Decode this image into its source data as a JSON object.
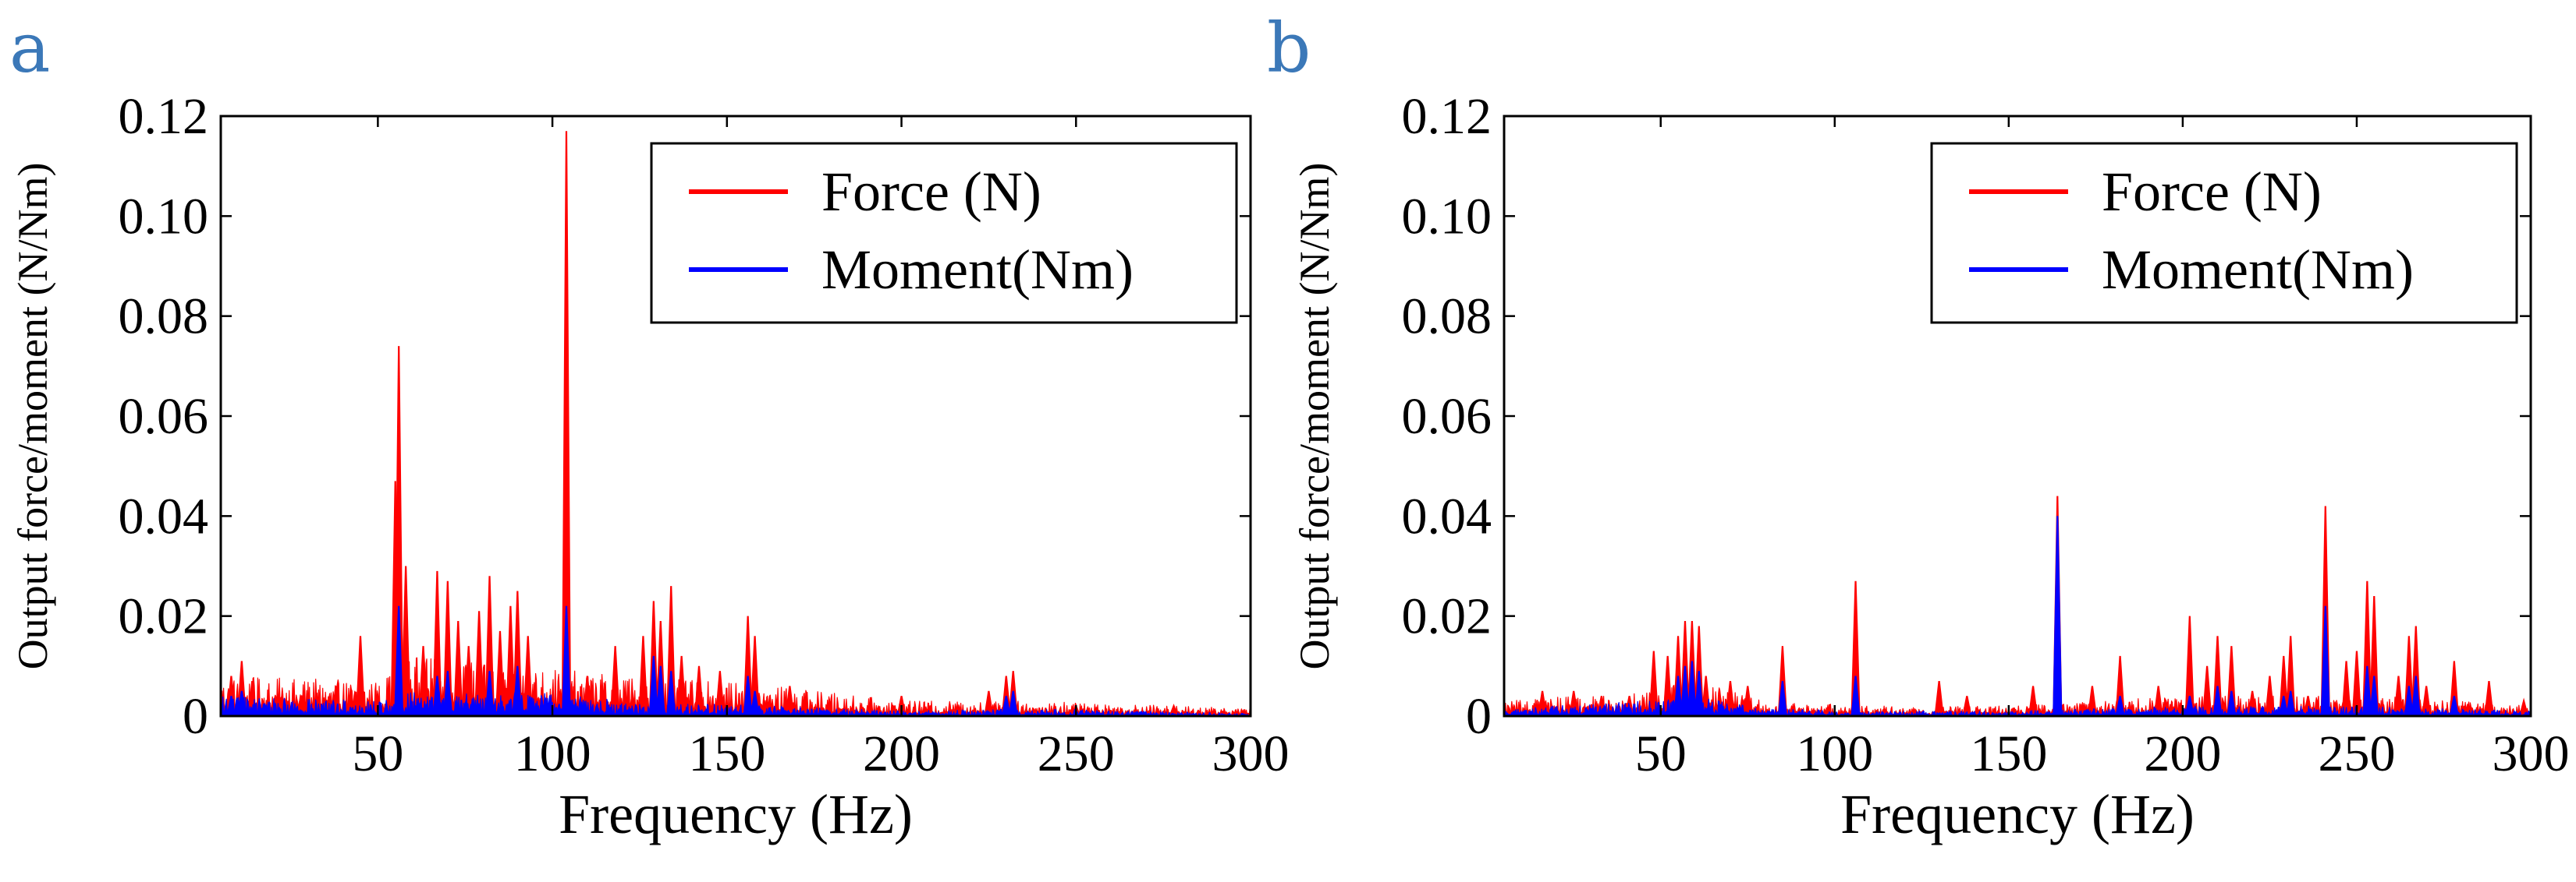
{
  "chart_data": [
    {
      "panel": "a",
      "type": "line",
      "xlabel": "Frequency (Hz)",
      "ylabel": "Output force/moment (N/Nm)",
      "xlim": [
        5,
        300
      ],
      "ylim": [
        0,
        0.12
      ],
      "xticks": [
        50,
        100,
        150,
        200,
        250,
        300
      ],
      "yticks": [
        0,
        0.02,
        0.04,
        0.06,
        0.08,
        0.1,
        0.12
      ],
      "ytick_labels": [
        "0",
        "0.02",
        "0.04",
        "0.06",
        "0.08",
        "0.10",
        "0.12"
      ],
      "legend": [
        "Force (N)",
        "Moment(Nm)"
      ],
      "legend_position": "top-right",
      "series": [
        {
          "name": "Force (N)",
          "color": "#ff0000",
          "noise_band": [
            [
              5,
              0.008
            ],
            [
              50,
              0.007
            ],
            [
              60,
              0.012
            ],
            [
              95,
              0.01
            ],
            [
              120,
              0.008
            ],
            [
              165,
              0.006
            ],
            [
              200,
              0.003
            ],
            [
              240,
              0.003
            ],
            [
              300,
              0.0015
            ]
          ],
          "peaks": [
            [
              8,
              0.008
            ],
            [
              11,
              0.011
            ],
            [
              14,
              0.007
            ],
            [
              38,
              0.006
            ],
            [
              45,
              0.016
            ],
            [
              55,
              0.047
            ],
            [
              56,
              0.074
            ],
            [
              58,
              0.03
            ],
            [
              63,
              0.014
            ],
            [
              67,
              0.029
            ],
            [
              70,
              0.027
            ],
            [
              73,
              0.019
            ],
            [
              76,
              0.014
            ],
            [
              79,
              0.021
            ],
            [
              82,
              0.028
            ],
            [
              85,
              0.017
            ],
            [
              88,
              0.022
            ],
            [
              90,
              0.025
            ],
            [
              93,
              0.016
            ],
            [
              104,
              0.117
            ],
            [
              110,
              0.008
            ],
            [
              118,
              0.014
            ],
            [
              126,
              0.016
            ],
            [
              129,
              0.023
            ],
            [
              131,
              0.019
            ],
            [
              134,
              0.026
            ],
            [
              137,
              0.012
            ],
            [
              142,
              0.01
            ],
            [
              148,
              0.009
            ],
            [
              156,
              0.02
            ],
            [
              158,
              0.016
            ],
            [
              168,
              0.006
            ],
            [
              200,
              0.004
            ],
            [
              225,
              0.005
            ],
            [
              230,
              0.008
            ],
            [
              232,
              0.009
            ],
            [
              250,
              0.002
            ],
            [
              278,
              0.002
            ]
          ]
        },
        {
          "name": "Moment(Nm)",
          "color": "#0000ff",
          "noise_band": [
            [
              5,
              0.004
            ],
            [
              50,
              0.003
            ],
            [
              60,
              0.005
            ],
            [
              95,
              0.005
            ],
            [
              120,
              0.003
            ],
            [
              165,
              0.002
            ],
            [
              200,
              0.001
            ],
            [
              240,
              0.0015
            ],
            [
              300,
              0.0005
            ]
          ],
          "peaks": [
            [
              8,
              0.004
            ],
            [
              11,
              0.005
            ],
            [
              56,
              0.022
            ],
            [
              67,
              0.008
            ],
            [
              70,
              0.009
            ],
            [
              82,
              0.009
            ],
            [
              90,
              0.01
            ],
            [
              104,
              0.022
            ],
            [
              129,
              0.012
            ],
            [
              131,
              0.01
            ],
            [
              134,
              0.009
            ],
            [
              156,
              0.008
            ],
            [
              158,
              0.005
            ],
            [
              230,
              0.004
            ],
            [
              232,
              0.005
            ]
          ]
        }
      ]
    },
    {
      "panel": "b",
      "type": "line",
      "xlabel": "Frequency (Hz)",
      "ylabel": "Output force/moment (N/Nm)",
      "xlim": [
        5,
        300
      ],
      "ylim": [
        0,
        0.12
      ],
      "xticks": [
        50,
        100,
        150,
        200,
        250,
        300
      ],
      "yticks": [
        0,
        0.02,
        0.04,
        0.06,
        0.08,
        0.1,
        0.12
      ],
      "ytick_labels": [
        "0",
        "0.02",
        "0.04",
        "0.06",
        "0.08",
        "0.10",
        "0.12"
      ],
      "legend": [
        "Force (N)",
        "Moment(Nm)"
      ],
      "legend_position": "top-right",
      "series": [
        {
          "name": "Force (N)",
          "color": "#ff0000",
          "noise_band": [
            [
              5,
              0.003
            ],
            [
              45,
              0.005
            ],
            [
              60,
              0.007
            ],
            [
              80,
              0.003
            ],
            [
              110,
              0.002
            ],
            [
              150,
              0.002
            ],
            [
              200,
              0.004
            ],
            [
              260,
              0.004
            ],
            [
              300,
              0.002
            ]
          ],
          "peaks": [
            [
              16,
              0.005
            ],
            [
              25,
              0.005
            ],
            [
              33,
              0.004
            ],
            [
              41,
              0.004
            ],
            [
              48,
              0.013
            ],
            [
              52,
              0.012
            ],
            [
              55,
              0.016
            ],
            [
              57,
              0.019
            ],
            [
              59,
              0.019
            ],
            [
              61,
              0.018
            ],
            [
              63,
              0.008
            ],
            [
              70,
              0.007
            ],
            [
              75,
              0.006
            ],
            [
              85,
              0.014
            ],
            [
              106,
              0.027
            ],
            [
              130,
              0.007
            ],
            [
              138,
              0.004
            ],
            [
              157,
              0.006
            ],
            [
              164,
              0.044
            ],
            [
              174,
              0.006
            ],
            [
              182,
              0.012
            ],
            [
              193,
              0.006
            ],
            [
              202,
              0.02
            ],
            [
              207,
              0.01
            ],
            [
              210,
              0.016
            ],
            [
              214,
              0.014
            ],
            [
              220,
              0.005
            ],
            [
              225,
              0.008
            ],
            [
              229,
              0.012
            ],
            [
              231,
              0.016
            ],
            [
              236,
              0.004
            ],
            [
              241,
              0.042
            ],
            [
              247,
              0.011
            ],
            [
              250,
              0.013
            ],
            [
              253,
              0.027
            ],
            [
              255,
              0.024
            ],
            [
              262,
              0.008
            ],
            [
              265,
              0.016
            ],
            [
              267,
              0.018
            ],
            [
              270,
              0.006
            ],
            [
              278,
              0.011
            ],
            [
              288,
              0.007
            ],
            [
              298,
              0.003
            ]
          ]
        },
        {
          "name": "Moment(Nm)",
          "color": "#0000ff",
          "noise_band": [
            [
              5,
              0.0015
            ],
            [
              45,
              0.003
            ],
            [
              60,
              0.004
            ],
            [
              80,
              0.0015
            ],
            [
              110,
              0.001
            ],
            [
              150,
              0.001
            ],
            [
              200,
              0.002
            ],
            [
              260,
              0.002
            ],
            [
              300,
              0.001
            ]
          ],
          "peaks": [
            [
              55,
              0.008
            ],
            [
              57,
              0.01
            ],
            [
              59,
              0.011
            ],
            [
              61,
              0.009
            ],
            [
              85,
              0.007
            ],
            [
              106,
              0.008
            ],
            [
              164,
              0.04
            ],
            [
              182,
              0.004
            ],
            [
              202,
              0.004
            ],
            [
              210,
              0.006
            ],
            [
              214,
              0.005
            ],
            [
              229,
              0.004
            ],
            [
              231,
              0.005
            ],
            [
              241,
              0.022
            ],
            [
              253,
              0.01
            ],
            [
              255,
              0.008
            ],
            [
              265,
              0.006
            ],
            [
              267,
              0.008
            ],
            [
              278,
              0.004
            ]
          ]
        }
      ]
    }
  ]
}
